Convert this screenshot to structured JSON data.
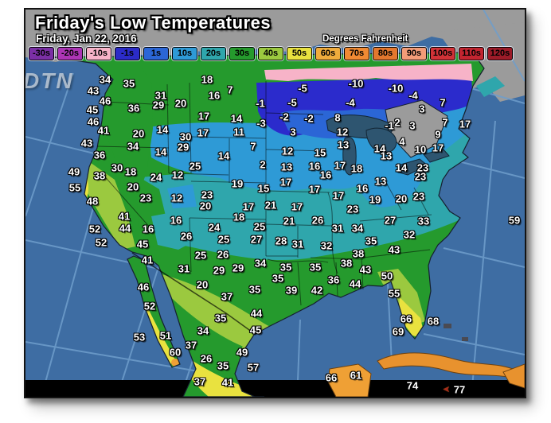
{
  "header": {
    "title": "Friday's Low Temperatures",
    "date": "Friday, Jan 22, 2016",
    "units": "Degrees Fahrenheit"
  },
  "logo_text": "DTN",
  "colors": {
    "ocean": "#3E6DA3",
    "graticule": "#6F9ECC",
    "canada_land": "#9B9B9B",
    "lakes": "#2E5570",
    "bottom_band": "#000000",
    "island_orange": "#E8922E"
  },
  "legend": [
    {
      "label": "-30s",
      "color": "#7B2FA5"
    },
    {
      "label": "-20s",
      "color": "#AC35B5"
    },
    {
      "label": "-10s",
      "color": "#F7B3C8"
    },
    {
      "label": "-1s",
      "color": "#2B2BC8"
    },
    {
      "label": "1s",
      "color": "#2B66D6"
    },
    {
      "label": "10s",
      "color": "#2E9AD6"
    },
    {
      "label": "20s",
      "color": "#2FA6AC"
    },
    {
      "label": "30s",
      "color": "#259A2D"
    },
    {
      "label": "40s",
      "color": "#9BC93F"
    },
    {
      "label": "50s",
      "color": "#E9E23F"
    },
    {
      "label": "60s",
      "color": "#F0AC3C"
    },
    {
      "label": "70s",
      "color": "#F08A33"
    },
    {
      "label": "80s",
      "color": "#E4772E"
    },
    {
      "label": "90s",
      "color": "#F29C78"
    },
    {
      "label": "100s",
      "color": "#D23237"
    },
    {
      "label": "110s",
      "color": "#C22530"
    },
    {
      "label": "120s",
      "color": "#9C1B28"
    }
  ],
  "temps": [
    [
      "34",
      100,
      88
    ],
    [
      "35",
      130,
      93
    ],
    [
      "18",
      228,
      88
    ],
    [
      "-5",
      348,
      99
    ],
    [
      "-10",
      415,
      93
    ],
    [
      "-10",
      465,
      99
    ],
    [
      "43",
      85,
      102
    ],
    [
      "7",
      257,
      101
    ],
    [
      "-5",
      335,
      117
    ],
    [
      "-4",
      408,
      117
    ],
    [
      "-4",
      487,
      108
    ],
    [
      "46",
      100,
      115
    ],
    [
      "31",
      170,
      108
    ],
    [
      "16",
      237,
      108
    ],
    [
      "-1",
      295,
      118
    ],
    [
      "7",
      524,
      117
    ],
    [
      "29",
      167,
      120
    ],
    [
      "20",
      195,
      118
    ],
    [
      "36",
      136,
      124
    ],
    [
      "45",
      84,
      126
    ],
    [
      "3",
      498,
      125
    ],
    [
      "-2",
      325,
      135
    ],
    [
      "-2",
      356,
      137
    ],
    [
      "8",
      392,
      136
    ],
    [
      "-3",
      296,
      143
    ],
    [
      "17",
      224,
      134
    ],
    [
      "14",
      265,
      137
    ],
    [
      "46",
      85,
      141
    ],
    [
      "7",
      527,
      142
    ],
    [
      "17",
      552,
      144
    ],
    [
      "-1",
      457,
      146
    ],
    [
      "2",
      467,
      142
    ],
    [
      "3",
      486,
      146
    ],
    [
      "41",
      98,
      152
    ],
    [
      "14",
      172,
      151
    ],
    [
      "20",
      142,
      156
    ],
    [
      "17",
      223,
      155
    ],
    [
      "11",
      268,
      154
    ],
    [
      "3",
      336,
      154
    ],
    [
      "12",
      398,
      154
    ],
    [
      "9",
      518,
      157
    ],
    [
      "43",
      77,
      168
    ],
    [
      "30",
      201,
      160
    ],
    [
      "34",
      135,
      172
    ],
    [
      "29",
      198,
      173
    ],
    [
      "14",
      170,
      179
    ],
    [
      "13",
      399,
      170
    ],
    [
      "12",
      329,
      178
    ],
    [
      "15",
      370,
      180
    ],
    [
      "7",
      286,
      172
    ],
    [
      "4",
      473,
      166
    ],
    [
      "17",
      518,
      174
    ],
    [
      "10",
      496,
      176
    ],
    [
      "14",
      445,
      175
    ],
    [
      "13",
      453,
      184
    ],
    [
      "36",
      93,
      183
    ],
    [
      "14",
      249,
      184
    ],
    [
      "2",
      298,
      195
    ],
    [
      "13",
      328,
      198
    ],
    [
      "16",
      363,
      197
    ],
    [
      "17",
      395,
      196
    ],
    [
      "18",
      416,
      200
    ],
    [
      "16",
      377,
      208
    ],
    [
      "14",
      472,
      199
    ],
    [
      "23",
      499,
      199
    ],
    [
      "49",
      61,
      204
    ],
    [
      "30",
      115,
      199
    ],
    [
      "18",
      132,
      204
    ],
    [
      "38",
      93,
      209
    ],
    [
      "24",
      164,
      211
    ],
    [
      "12",
      191,
      208
    ],
    [
      "25",
      213,
      197
    ],
    [
      "19",
      266,
      219
    ],
    [
      "17",
      327,
      217
    ],
    [
      "15",
      299,
      225
    ],
    [
      "17",
      363,
      226
    ],
    [
      "16",
      423,
      225
    ],
    [
      "13",
      446,
      216
    ],
    [
      "23",
      496,
      210
    ],
    [
      "55",
      62,
      224
    ],
    [
      "20",
      135,
      223
    ],
    [
      "23",
      228,
      233
    ],
    [
      "17",
      393,
      234
    ],
    [
      "19",
      439,
      239
    ],
    [
      "23",
      494,
      235
    ],
    [
      "20",
      472,
      238
    ],
    [
      "48",
      84,
      241
    ],
    [
      "23",
      151,
      237
    ],
    [
      "12",
      190,
      237
    ],
    [
      "20",
      226,
      247
    ],
    [
      "17",
      280,
      248
    ],
    [
      "21",
      308,
      246
    ],
    [
      "17",
      341,
      248
    ],
    [
      "23",
      411,
      251
    ],
    [
      "41",
      124,
      260
    ],
    [
      "16",
      189,
      265
    ],
    [
      "18",
      268,
      261
    ],
    [
      "21",
      331,
      266
    ],
    [
      "26",
      367,
      265
    ],
    [
      "27",
      458,
      265
    ],
    [
      "33",
      500,
      266
    ],
    [
      "59",
      614,
      265
    ],
    [
      "52",
      87,
      276
    ],
    [
      "44",
      125,
      275
    ],
    [
      "16",
      154,
      276
    ],
    [
      "24",
      237,
      274
    ],
    [
      "25",
      294,
      273
    ],
    [
      "31",
      392,
      275
    ],
    [
      "34",
      417,
      275
    ],
    [
      "52",
      95,
      293
    ],
    [
      "45",
      147,
      295
    ],
    [
      "26",
      202,
      285
    ],
    [
      "25",
      249,
      289
    ],
    [
      "27",
      290,
      289
    ],
    [
      "28",
      321,
      291
    ],
    [
      "31",
      342,
      295
    ],
    [
      "32",
      378,
      297
    ],
    [
      "32",
      482,
      283
    ],
    [
      "25",
      220,
      309
    ],
    [
      "26",
      248,
      308
    ],
    [
      "35",
      434,
      291
    ],
    [
      "43",
      463,
      302
    ],
    [
      "38",
      418,
      307
    ],
    [
      "41",
      153,
      315
    ],
    [
      "31",
      199,
      326
    ],
    [
      "29",
      243,
      328
    ],
    [
      "29",
      267,
      325
    ],
    [
      "34",
      295,
      319
    ],
    [
      "35",
      327,
      324
    ],
    [
      "35",
      364,
      324
    ],
    [
      "38",
      403,
      319
    ],
    [
      "43",
      427,
      327
    ],
    [
      "20",
      222,
      346
    ],
    [
      "35",
      317,
      338
    ],
    [
      "36",
      387,
      340
    ],
    [
      "44",
      414,
      345
    ],
    [
      "50",
      454,
      335
    ],
    [
      "46",
      148,
      349
    ],
    [
      "37",
      253,
      361
    ],
    [
      "35",
      288,
      352
    ],
    [
      "39",
      334,
      353
    ],
    [
      "42",
      366,
      353
    ],
    [
      "55",
      463,
      357
    ],
    [
      "52",
      156,
      373
    ],
    [
      "44",
      290,
      382
    ],
    [
      "35",
      245,
      388
    ],
    [
      "66",
      478,
      389
    ],
    [
      "68",
      512,
      392
    ],
    [
      "53",
      143,
      412
    ],
    [
      "51",
      176,
      410
    ],
    [
      "34",
      223,
      404
    ],
    [
      "45",
      289,
      403
    ],
    [
      "69",
      468,
      405
    ],
    [
      "37",
      208,
      422
    ],
    [
      "60",
      188,
      431
    ],
    [
      "49",
      272,
      431
    ],
    [
      "26",
      227,
      439
    ],
    [
      "35",
      248,
      448
    ],
    [
      "57",
      286,
      450
    ],
    [
      "37",
      219,
      468
    ],
    [
      "41",
      254,
      469
    ],
    [
      "66",
      384,
      463
    ],
    [
      "61",
      415,
      460
    ],
    [
      "74",
      486,
      473
    ],
    [
      "77",
      545,
      478
    ]
  ]
}
